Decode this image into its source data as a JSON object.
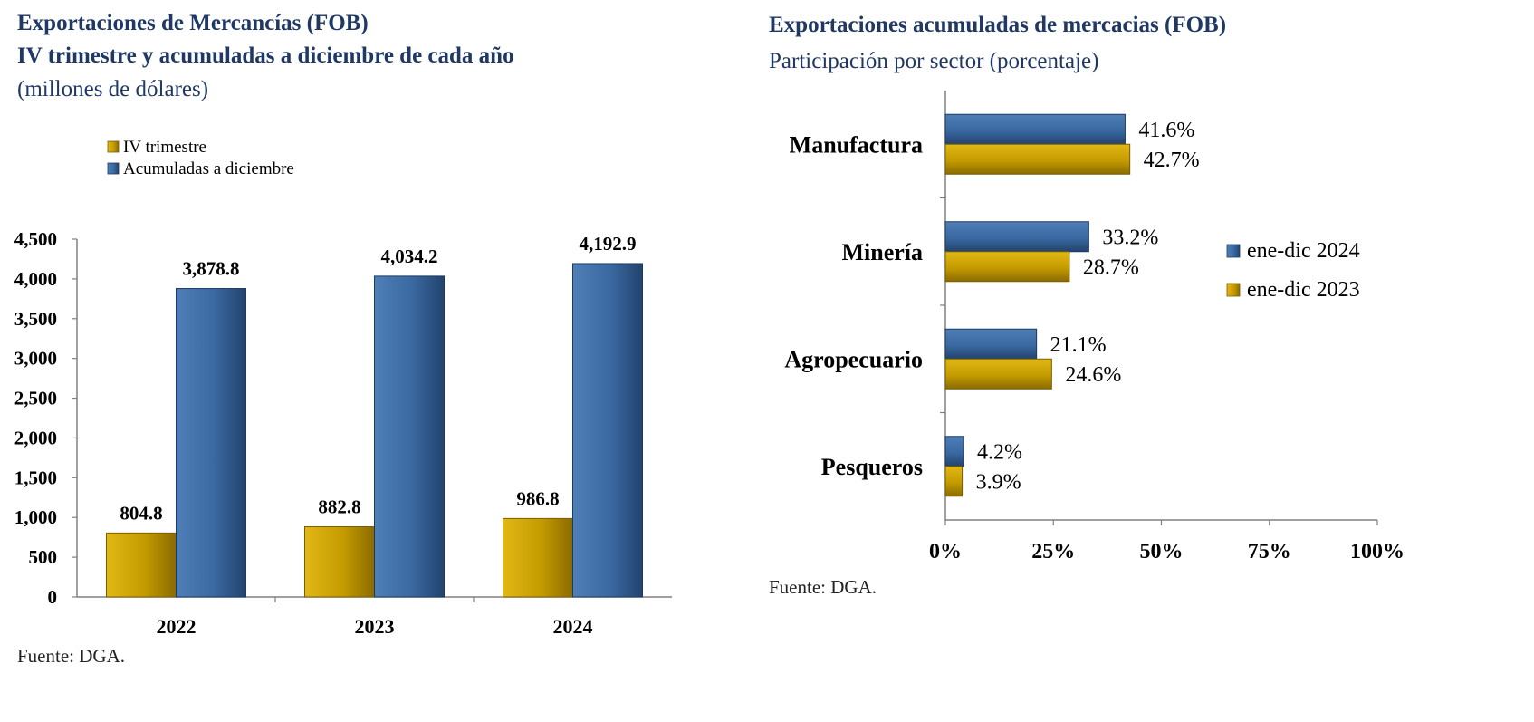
{
  "colors": {
    "title": "#1f3864",
    "gold": "#c9a000",
    "blue": "#3c6aa2"
  },
  "left_panel": {
    "title": "Exportaciones de Mercancías (FOB)",
    "subtitle": "IV trimestre y acumuladas a diciembre de cada año",
    "units": "(millones de dólares)",
    "source": "Fuente: DGA."
  },
  "right_panel": {
    "title": "Exportaciones acumuladas de mercacias (FOB)",
    "subtitle": "Participación por sector (porcentaje)",
    "source": "Fuente: DGA."
  },
  "chart_data": [
    {
      "type": "bar",
      "orientation": "vertical",
      "categories": [
        "2022",
        "2023",
        "2024"
      ],
      "series": [
        {
          "name": "IV trimestre",
          "values": [
            804.8,
            882.8,
            986.8
          ],
          "labels": [
            "804.8",
            "882.8",
            "986.8"
          ],
          "color": "#c9a000"
        },
        {
          "name": "Acumuladas a diciembre",
          "values": [
            3878.8,
            4034.2,
            4192.9
          ],
          "labels": [
            "3,878.8",
            "4,034.2",
            "4,192.9"
          ],
          "color": "#3c6aa2"
        }
      ],
      "yticks": [
        "0",
        "500",
        "1,000",
        "1,500",
        "2,000",
        "2,500",
        "3,000",
        "3,500",
        "4,000",
        "4,500"
      ],
      "ylim": [
        0,
        4500
      ],
      "legend_position": "top-left"
    },
    {
      "type": "bar",
      "orientation": "horizontal",
      "categories": [
        "Manufactura",
        "Minería",
        "Agropecuario",
        "Pesqueros"
      ],
      "series": [
        {
          "name": "ene-dic 2024",
          "values": [
            41.6,
            33.2,
            21.1,
            4.2
          ],
          "labels": [
            "41.6%",
            "33.2%",
            "21.1%",
            "4.2%"
          ],
          "color": "#3c6aa2"
        },
        {
          "name": "ene-dic 2023",
          "values": [
            42.7,
            28.7,
            24.6,
            3.9
          ],
          "labels": [
            "42.7%",
            "28.7%",
            "24.6%",
            "3.9%"
          ],
          "color": "#c9a000"
        }
      ],
      "xticks": [
        "0%",
        "25%",
        "50%",
        "75%",
        "100%"
      ],
      "xlim": [
        0,
        100
      ],
      "legend_position": "right"
    }
  ]
}
